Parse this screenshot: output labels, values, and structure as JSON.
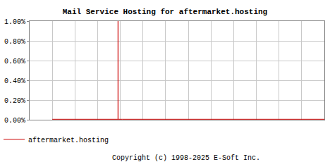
{
  "chart_data": {
    "type": "line",
    "title": "Mail Service Hosting for aftermarket.hosting",
    "footer": "Copyright (c) 1998-2025 E-Soft Inc.",
    "x": [
      10,
      12,
      14,
      16,
      18,
      20,
      22,
      23,
      24,
      26,
      28,
      30,
      32,
      34,
      35,
      37,
      39,
      39,
      39,
      41,
      43,
      45,
      47,
      49,
      51,
      53,
      54,
      56,
      58,
      60,
      62,
      64,
      65,
      67,
      69,
      71,
      73,
      74,
      76,
      78,
      80,
      82,
      84,
      86,
      88,
      90,
      92,
      94,
      95,
      96,
      98,
      100,
      102,
      104,
      106,
      108,
      110,
      112,
      114,
      116,
      118,
      120,
      122,
      124,
      126,
      128,
      130
    ],
    "series": [
      {
        "name": "aftermarket.hosting",
        "color": "#cc0000",
        "values": [
          0.005,
          0.005,
          0.005,
          0.005,
          0.005,
          0.005,
          0.005,
          0.005,
          0.01,
          0.01,
          0.01,
          0.01,
          0.01,
          0.01,
          0.005,
          0.005,
          0.005,
          1.0,
          0.005,
          0.005,
          0.005,
          0.005,
          0.005,
          0.005,
          0.005,
          0.005,
          0.01,
          0.01,
          0.01,
          0.01,
          0.01,
          0.01,
          0.005,
          0.005,
          0.005,
          0.005,
          0.005,
          0.01,
          0.01,
          0.01,
          0.01,
          0.01,
          0.01,
          0.01,
          0.01,
          0.01,
          0.01,
          0.01,
          0.01,
          0.005,
          0.005,
          0.005,
          0.005,
          0.005,
          0.005,
          0.005,
          0.005,
          0.005,
          0.005,
          0.005,
          0.005,
          0.005,
          0.005,
          0.005,
          0.005,
          0.005,
          0.005
        ]
      }
    ],
    "xlim": [
      0,
      130
    ],
    "xticks": [
      0,
      10,
      20,
      30,
      40,
      50,
      60,
      70,
      80,
      90,
      100,
      110,
      120,
      130
    ],
    "ylim": [
      0,
      1
    ],
    "yticks": [
      {
        "value": 0,
        "label": "0.00%"
      },
      {
        "value": 0.2,
        "label": "0.20%"
      },
      {
        "value": 0.4,
        "label": "0.40%"
      },
      {
        "value": 0.6,
        "label": "0.60%"
      },
      {
        "value": 0.8,
        "label": "0.80%"
      },
      {
        "value": 1,
        "label": "1.00%"
      }
    ],
    "grid": true,
    "legend": "bottom-left",
    "tick_labels": "y"
  }
}
